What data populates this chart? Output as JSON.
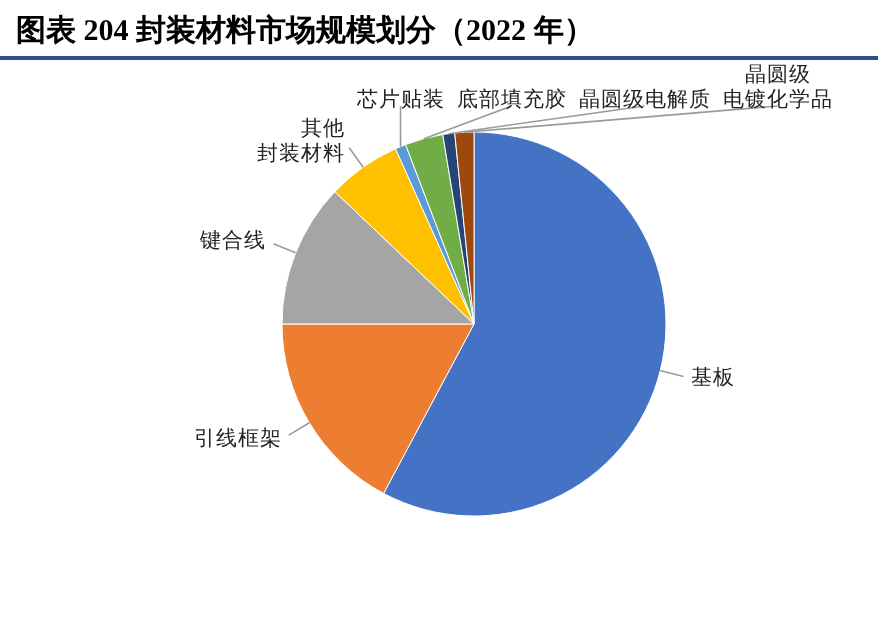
{
  "chart_data": {
    "type": "pie",
    "title": "图表 204  封装材料市场规模划分（2022 年）",
    "categories": [
      "基板",
      "引线框架",
      "键合线",
      "其他封装材料",
      "芯片贴装",
      "底部填充胶",
      "晶圆级电解质",
      "晶圆级电镀化学品"
    ],
    "values": [
      57.8,
      17.2,
      12.1,
      6.2,
      0.9,
      3.2,
      1.0,
      1.6
    ],
    "colors": [
      "#4472c4",
      "#ed7d31",
      "#a5a5a5",
      "#ffc000",
      "#5b9bd5",
      "#70ad47",
      "#264478",
      "#9e480e"
    ]
  }
}
